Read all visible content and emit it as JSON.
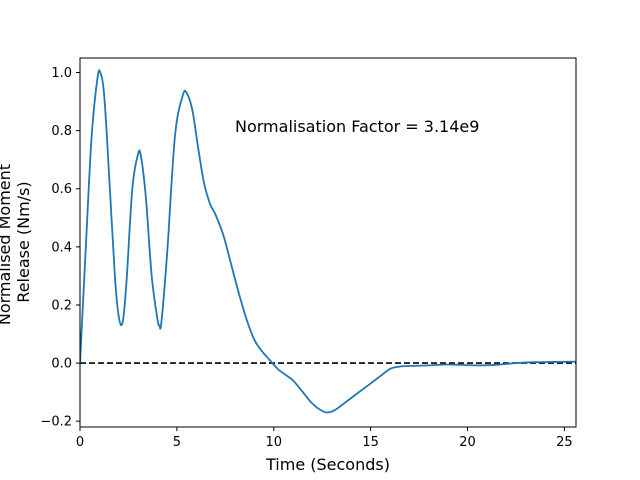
{
  "chart_data": {
    "type": "line",
    "xlabel": "Time (Seconds)",
    "ylabel_lines": [
      "Normalised Moment",
      "Release (Nm/s)"
    ],
    "xlim": [
      0,
      25.6
    ],
    "ylim": [
      -0.22,
      1.05
    ],
    "x_ticks": [
      0,
      5,
      10,
      15,
      20,
      25
    ],
    "y_ticks": [
      -0.2,
      0.0,
      0.2,
      0.4,
      0.6,
      0.8,
      1.0
    ],
    "x_tick_labels": [
      "0",
      "5",
      "10",
      "15",
      "20",
      "25"
    ],
    "y_tick_labels": [
      "−0.2",
      "0.0",
      "0.2",
      "0.4",
      "0.6",
      "0.8",
      "1.0"
    ],
    "grid": false,
    "annotation": "Normalisation Factor = 3.14e9",
    "series": [
      {
        "color": "#1f77b4",
        "x": [
          0,
          0.3,
          0.6,
          0.9,
          1.05,
          1.25,
          1.5,
          1.8,
          2.0,
          2.2,
          2.4,
          2.7,
          3.0,
          3.15,
          3.4,
          3.7,
          4.0,
          4.1,
          4.2,
          4.5,
          4.9,
          5.3,
          5.5,
          5.8,
          6.1,
          6.4,
          6.7,
          7.0,
          7.4,
          7.8,
          8.2,
          8.6,
          9.0,
          9.4,
          9.8,
          10.2,
          10.6,
          11.0,
          11.5,
          12.0,
          12.5,
          12.8,
          13.2,
          13.8,
          14.4,
          15.0,
          15.5,
          16.0,
          16.5,
          17.0,
          18.0,
          19.0,
          20.0,
          20.7,
          21.5,
          22.5,
          23.5,
          24.5,
          25.6
        ],
        "y": [
          0.0,
          0.4,
          0.78,
          0.98,
          1.0,
          0.92,
          0.65,
          0.3,
          0.16,
          0.14,
          0.28,
          0.6,
          0.72,
          0.71,
          0.57,
          0.3,
          0.15,
          0.13,
          0.14,
          0.38,
          0.78,
          0.92,
          0.93,
          0.87,
          0.74,
          0.62,
          0.55,
          0.51,
          0.44,
          0.34,
          0.24,
          0.15,
          0.08,
          0.04,
          0.01,
          -0.02,
          -0.04,
          -0.06,
          -0.1,
          -0.14,
          -0.165,
          -0.17,
          -0.16,
          -0.13,
          -0.1,
          -0.07,
          -0.045,
          -0.02,
          -0.012,
          -0.01,
          -0.008,
          -0.005,
          -0.007,
          -0.008,
          -0.006,
          0.0,
          0.003,
          0.004,
          0.005
        ]
      }
    ],
    "reference_lines": [
      {
        "y": 0.0,
        "style": "dashed",
        "color": "#000000"
      }
    ]
  }
}
